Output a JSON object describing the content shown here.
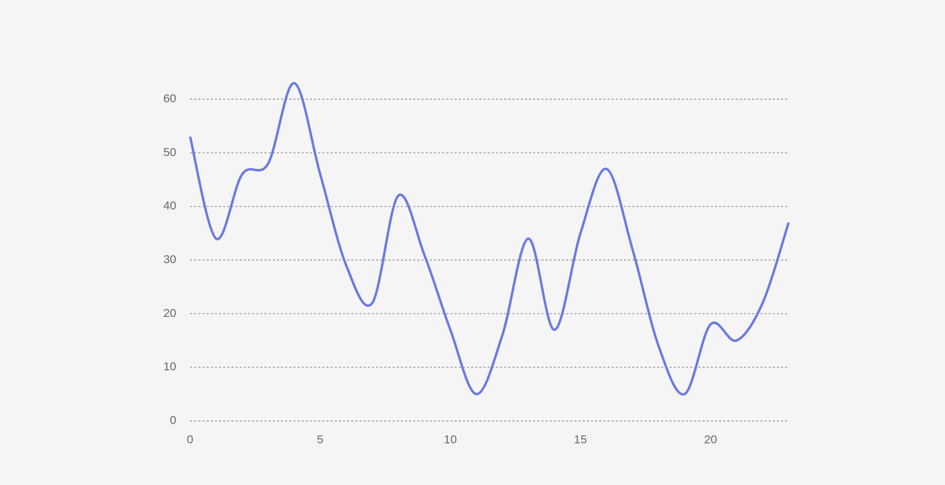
{
  "chart_data": {
    "type": "line",
    "x": [
      0,
      1,
      2,
      3,
      4,
      5,
      6,
      7,
      8,
      9,
      10,
      11,
      12,
      13,
      14,
      15,
      16,
      17,
      18,
      19,
      20,
      21,
      22,
      23
    ],
    "series": [
      {
        "color": "#6b79e0",
        "values": [
          53,
          34,
          46,
          48,
          63,
          46,
          29,
          22,
          42,
          31,
          17,
          5,
          16,
          34,
          17,
          35,
          47,
          32,
          14,
          5,
          18,
          15,
          22,
          37
        ]
      }
    ],
    "xlim": [
      0,
      23
    ],
    "xticks": [
      0,
      5,
      10,
      15,
      20
    ],
    "ylim": [
      0,
      60
    ],
    "yticks": [
      0,
      10,
      20,
      30,
      40,
      50,
      60
    ],
    "grid": true,
    "smooth": true
  }
}
